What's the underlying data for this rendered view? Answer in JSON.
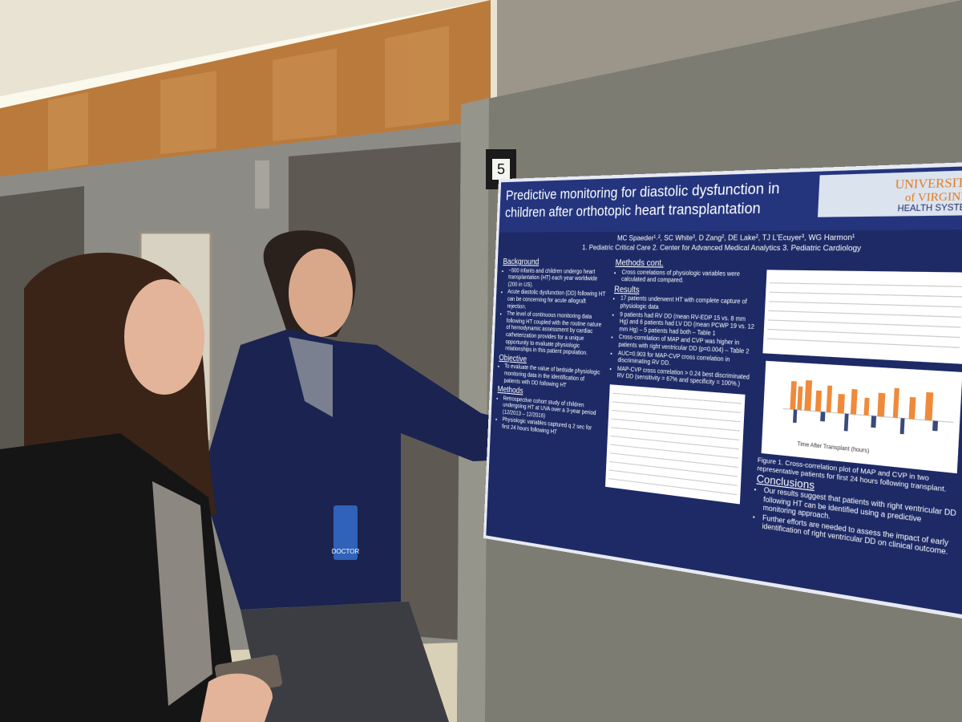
{
  "board_number": "5",
  "badge": "DOCTOR",
  "poster": {
    "title": "Predictive monitoring for diastolic dysfunction in children after orthotopic heart transplantation",
    "logo": {
      "line1": "UNIVERSITY",
      "line2": "of VIRGINIA",
      "line3": "HEALTH SYSTEM"
    },
    "authors": "MC Spaeder¹˒², SC White³, D Zang², DE Lake², TJ L'Ecuyer³, WG Harmon¹",
    "affiliations": "1. Pediatric Critical Care 2. Center for Advanced Medical Analytics 3. Pediatric Cardiology",
    "left_sections": [
      {
        "heading": "Background",
        "items": [
          "~500 infants and children undergo heart transplantation (HT) each year worldwide (200 in US).",
          "Acute diastolic dysfunction (DD) following HT can be concerning for acute allograft rejection.",
          "The level of continuous monitoring data following HT coupled with the routine nature of hemodynamic assessment by cardiac catheterization provides for a unique opportunity to evaluate physiologic relationships in this patient population."
        ]
      },
      {
        "heading": "Objective",
        "items": [
          "To evaluate the value of bedside physiologic monitoring data in the identification of patients with DD following HT"
        ]
      },
      {
        "heading": "Methods",
        "items": [
          "Retrospective cohort study of children undergoing HT at UVA over a 3-year period (12/2013 – 12/2016)",
          "Physiologic variables captured q 2 sec for first 24 hours following HT"
        ]
      }
    ],
    "middle_sections": [
      {
        "heading": "Methods cont.",
        "items": [
          "Cross correlations of physiologic variables were calculated and compared."
        ]
      },
      {
        "heading": "Results",
        "items": [
          "17 patients underwent HT with complete capture of physiologic data",
          "9 patients had RV DD (mean RV-EDP 15 vs. 8 mm Hg) and 6 patients had LV DD (mean PCWP 19 vs. 12 mm Hg) – 5 patients had both – Table 1",
          "Cross-correlation of MAP and CVP was higher in patients with right ventricular DD (p=0.004) – Table 2",
          "AUC=0.903 for MAP-CVP cross correlation in discriminating RV DD.",
          "MAP-CVP cross correlation > 0.24 best discriminated RV DD (sensitivity = 67% and specificity = 100%.)"
        ]
      }
    ],
    "figure_axis_label": "Time After Transplant (hours)",
    "figure_caption": "Figure 1. Cross-correlation plot of MAP and CVP in two representative patients for first 24 hours following transplant.",
    "right_sections": [
      {
        "heading": "Conclusions",
        "items": [
          "Our results suggest that patients with right ventricular DD following HT can be identified using a predictive monitoring approach.",
          "Further efforts are needed to assess the impact of early identification of right ventricular DD on clinical outcome."
        ]
      }
    ]
  }
}
